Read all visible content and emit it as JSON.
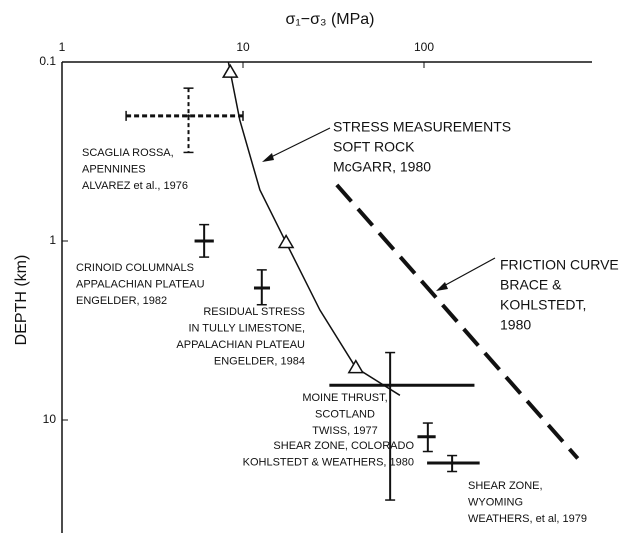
{
  "chart_data": {
    "type": "scatter",
    "x_label": "σ₁−σ₃   (MPa)",
    "y_label": "DEPTH (km)",
    "xscale": "log",
    "yscale": "log",
    "y_inverted": true,
    "xlim": [
      1,
      1000
    ],
    "ylim": [
      0.1,
      40
    ],
    "xticks": [
      1,
      10,
      100
    ],
    "yticks": [
      0.1,
      1,
      10
    ],
    "color": "#111111",
    "points": [
      {
        "x": 5,
        "y": 0.2,
        "xerr": [
          2.26,
          10
        ],
        "yerr": [
          0.14,
          0.32
        ],
        "dashed": true,
        "label": [
          "SCAGLIA ROSSA,",
          "APENNINES",
          "ALVAREZ et al., 1976"
        ]
      },
      {
        "x": 6.1,
        "y": 1,
        "xerr": [
          5.4,
          6.9
        ],
        "yerr": [
          0.81,
          1.23
        ],
        "dashed": false,
        "label": [
          "CRINOID COLUMNALS",
          "APPALACHIAN PLATEAU",
          "ENGELDER, 1982"
        ]
      },
      {
        "x": 12.7,
        "y": 1.83,
        "xerr": [
          11.5,
          14.1
        ],
        "yerr": [
          1.45,
          2.27
        ],
        "dashed": false,
        "label": [
          "RESIDUAL STRESS",
          "IN TULLY LIMESTONE,",
          "APPALACHIAN PLATEAU",
          "ENGELDER, 1984"
        ]
      },
      {
        "x": 65,
        "y": 6.4,
        "xerr": [
          30,
          190
        ],
        "yerr": [
          4.2,
          28
        ],
        "dashed": false,
        "label": [
          "MOINE THRUST,",
          "SCOTLAND",
          "TWISS, 1977"
        ]
      },
      {
        "x": 105,
        "y": 12.4,
        "xerr": [
          92,
          116
        ],
        "yerr": [
          10.4,
          15
        ],
        "dashed": false,
        "label": [
          "SHEAR ZONE, COLORADO",
          "KOHLSTEDT & WEATHERS, 1980"
        ]
      },
      {
        "x": 143,
        "y": 17.4,
        "xerr": [
          104,
          203
        ],
        "yerr": [
          15.8,
          19.4
        ],
        "dashed": false,
        "label": [
          "SHEAR ZONE,",
          "WYOMING",
          "WEATHERS, et al, 1979"
        ]
      }
    ],
    "lines": [
      {
        "x": [
          8.3,
          9.6,
          12.4,
          17.3,
          26.6,
          42,
          73.6
        ],
        "y": [
          0.1,
          0.211,
          0.519,
          1.02,
          2.43,
          5.1,
          7.28
        ],
        "dashed": false,
        "markers": {
          "x": [
            8.5,
            17.3,
            42
          ],
          "y": [
            0.114,
            1.02,
            5.1
          ]
        },
        "label": [
          "STRESS MEASUREMENTS",
          "SOFT ROCK",
          "McGARR, 1980"
        ]
      },
      {
        "x": [
          33,
          707
        ],
        "y": [
          0.486,
          16.4
        ],
        "dashed": true,
        "label": [
          "FRICTION CURVE",
          "BRACE &",
          "KOHLSTEDT,",
          "1980"
        ]
      }
    ]
  }
}
